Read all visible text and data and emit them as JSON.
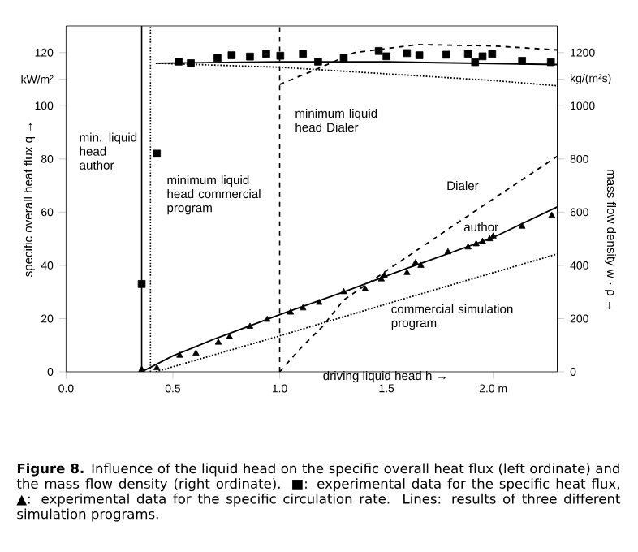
{
  "chart_data": {
    "type": "line",
    "xlabel": "driving liquid head h →",
    "ylabel": "specific overall heat flux q →",
    "y2label": "mass flow density w · ρ →",
    "xlim": [
      0,
      2.3
    ],
    "xticks": [
      {
        "value": 0,
        "label": "0.0"
      },
      0.5,
      {
        "value": 1,
        "label": "1.0"
      },
      1.5,
      {
        "value": 2,
        "label": "2.0 m"
      }
    ],
    "ylim": [
      0,
      130
    ],
    "yticks": [
      0,
      20,
      40,
      60,
      80,
      100,
      {
        "value": 110,
        "label": "kW/m²"
      },
      120
    ],
    "y2lim": [
      0,
      1300
    ],
    "y2ticks": [
      0,
      200,
      400,
      600,
      800,
      1000,
      {
        "value": 1100,
        "label": "kg/(m²s)"
      },
      1200
    ],
    "grid": false,
    "legend": false,
    "series": [
      {
        "type": "scatter",
        "marker": "square",
        "axis": "y",
        "color": "#000000",
        "x": [
          0.354,
          0.425,
          0.527,
          0.584,
          0.709,
          0.775,
          0.861,
          0.937,
          1.003,
          1.109,
          1.18,
          1.3,
          1.464,
          1.5,
          1.596,
          1.654,
          1.78,
          1.882,
          1.915,
          1.95,
          1.995,
          2.135,
          2.27
        ],
        "values": [
          33,
          82,
          116.6,
          116,
          118,
          119,
          118.5,
          119.5,
          118.8,
          119.5,
          116.6,
          118,
          120.6,
          118.6,
          119.8,
          119,
          119.2,
          119.5,
          116.4,
          118.6,
          119.5,
          116.9,
          116.4
        ]
      },
      {
        "type": "scatter",
        "marker": "triangle",
        "axis": "y2",
        "color": "#000000",
        "x": [
          0.354,
          0.425,
          0.532,
          0.608,
          0.713,
          0.765,
          0.861,
          0.942,
          1.051,
          1.109,
          1.185,
          1.3,
          1.4,
          1.476,
          1.49,
          1.596,
          1.636,
          1.661,
          1.788,
          1.882,
          1.92,
          1.95,
          1.983,
          2.0,
          2.135,
          2.274
        ],
        "values": [
          8,
          14,
          61,
          69,
          110,
          131,
          170,
          196,
          223,
          239,
          260,
          300,
          311,
          348,
          362,
          372,
          409,
          399,
          450,
          468,
          480,
          489,
          499,
          509,
          546,
          587
        ]
      },
      {
        "axis": "y",
        "line_style": "solid",
        "color": "#000000",
        "x": [
          0.42,
          1.0,
          1.5,
          2.3
        ],
        "values": [
          116,
          116.5,
          116.5,
          115.5
        ]
      },
      {
        "axis": "y",
        "line_style": "dashed",
        "color": "#000000",
        "x": [
          1.0,
          1.18,
          1.35,
          1.65,
          2.0,
          2.3
        ],
        "values": [
          108,
          114,
          120,
          123,
          122.5,
          121
        ]
      },
      {
        "axis": "y",
        "line_style": "dotted",
        "color": "#000000",
        "x": [
          0.42,
          1.0,
          1.5,
          2.0,
          2.3
        ],
        "values": [
          116,
          114.5,
          112,
          109.5,
          107.5
        ]
      },
      {
        "name": "author",
        "axis": "y2",
        "line_style": "solid",
        "color": "#000000",
        "x": [
          0.354,
          0.5,
          0.7,
          1.0,
          1.3,
          1.6,
          2.0,
          2.3
        ],
        "values": [
          0,
          60,
          125,
          215,
          300,
          390,
          505,
          620
        ]
      },
      {
        "name": "Dialer",
        "axis": "y2",
        "line_style": "dashed",
        "color": "#000000",
        "x": [
          1.0,
          1.1,
          1.2,
          1.3,
          1.5,
          2.0,
          2.3
        ],
        "values": [
          0,
          90,
          170,
          270,
          380,
          650,
          810
        ]
      },
      {
        "name": "commercial simulation program",
        "axis": "y2",
        "line_style": "dotted",
        "color": "#000000",
        "x": [
          0.42,
          1.0,
          1.5,
          2.3
        ],
        "values": [
          0,
          135,
          255,
          443
        ]
      }
    ],
    "ref_lines": [
      {
        "axis": "x",
        "value": 0.354,
        "label": "min. liquid head author",
        "line_style": "solid",
        "color": "#000000"
      },
      {
        "axis": "x",
        "value": 0.395,
        "label": "minimum liquid head commercial program",
        "line_style": "dotted",
        "color": "#000000"
      },
      {
        "axis": "x",
        "value": 1.0,
        "label": "minimum liquid head Dialer",
        "line_style": "dashed",
        "color": "#000000"
      }
    ],
    "annotations": [
      "**Figure 8.** Influence of the liquid head on the specific overall heat flux (left ordinate) and the mass flow density (right ordinate). ■: experimental data for the specific heat flux, ▲: experimental data for the specific circulation rate. Lines: results of three different simulation programs."
    ]
  }
}
